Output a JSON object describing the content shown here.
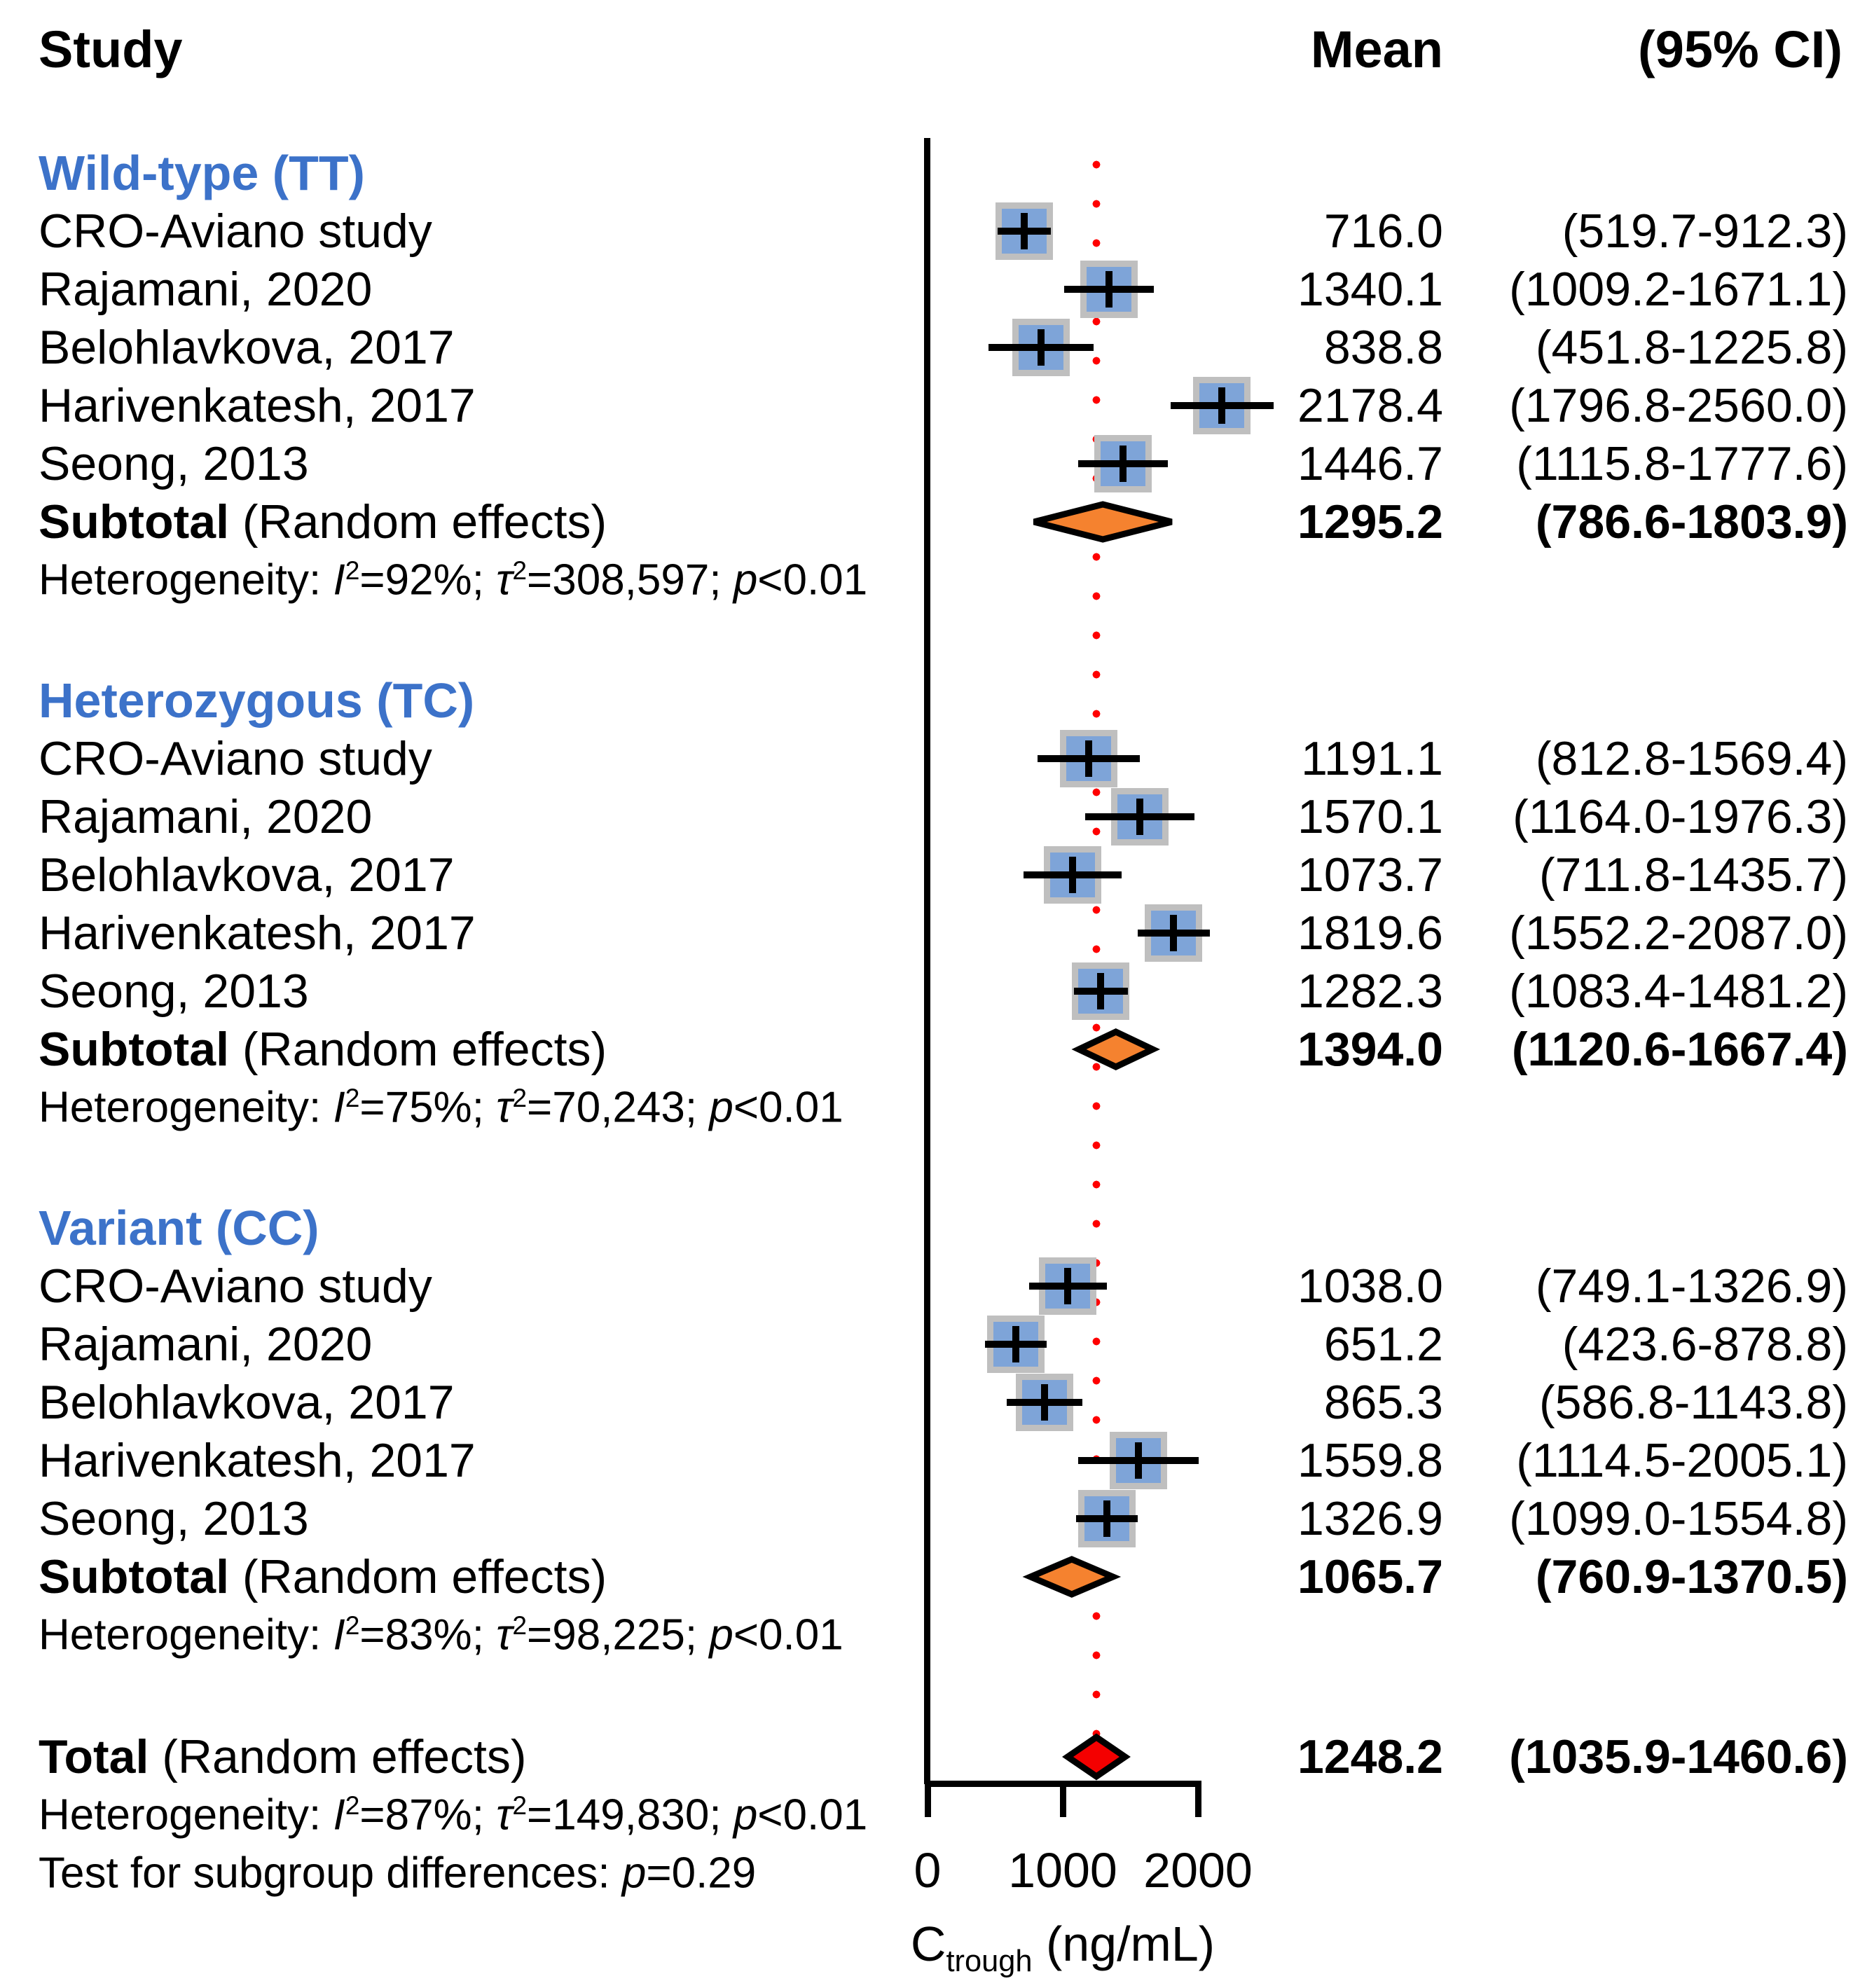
{
  "header": {
    "study": "Study",
    "mean": "Mean",
    "ci": "(95% CI)"
  },
  "colors": {
    "section_header_blue": "#3C72C9",
    "square_fill": "#7EA4D8",
    "square_border": "#BFBFBF",
    "subtotal_diamond_orange": "#F5822F",
    "total_diamond_red": "#F40000",
    "reference_line_red": "#FF0000",
    "ci_line_black": "#000000"
  },
  "axis": {
    "xmin": 0,
    "xmax": 2000,
    "ticks": [
      {
        "value": 0,
        "label": "0"
      },
      {
        "value": 1000,
        "label": "1000"
      },
      {
        "value": 2000,
        "label": "2000"
      }
    ],
    "title_main": "C",
    "title_sub": "trough",
    "title_rest": " (ng/mL)"
  },
  "chart_data": {
    "type": "forest",
    "xlabel": "Ctrough (ng/mL)",
    "xlim": [
      0,
      2000
    ],
    "reference_line": 1248.2,
    "groups": [
      {
        "label": "Wild-type (TT)",
        "studies": [
          {
            "name": "CRO-Aviano study",
            "mean": 716.0,
            "ci_low": 519.7,
            "ci_high": 912.3,
            "mean_text": "716.0",
            "ci_text": "(519.7-912.3)"
          },
          {
            "name": "Rajamani, 2020",
            "mean": 1340.1,
            "ci_low": 1009.2,
            "ci_high": 1671.1,
            "mean_text": "1340.1",
            "ci_text": "(1009.2-1671.1)"
          },
          {
            "name": "Belohlavkova, 2017",
            "mean": 838.8,
            "ci_low": 451.8,
            "ci_high": 1225.8,
            "mean_text": "838.8",
            "ci_text": "(451.8-1225.8)"
          },
          {
            "name": "Harivenkatesh, 2017",
            "mean": 2178.4,
            "ci_low": 1796.8,
            "ci_high": 2560.0,
            "mean_text": "2178.4",
            "ci_text": "(1796.8-2560.0)"
          },
          {
            "name": "Seong, 2013",
            "mean": 1446.7,
            "ci_low": 1115.8,
            "ci_high": 1777.6,
            "mean_text": "1446.7",
            "ci_text": "(1115.8-1777.6)"
          }
        ],
        "subtotal": {
          "label_bold": "Subtotal",
          "label_rest": " (Random effects)",
          "mean": 1295.2,
          "ci_low": 786.6,
          "ci_high": 1803.9,
          "mean_text": "1295.2",
          "ci_text": "(786.6-1803.9)"
        },
        "heterogeneity": {
          "prefix": "Heterogeneity: ",
          "i_sym": "I",
          "sup1": "2",
          "i_val": "=92%; ",
          "tau_sym": "τ",
          "sup2": "2",
          "tau_val": "=308,597; ",
          "p_sym": "p",
          "p_val": "<0.01"
        }
      },
      {
        "label": "Heterozygous (TC)",
        "studies": [
          {
            "name": "CRO-Aviano study",
            "mean": 1191.1,
            "ci_low": 812.8,
            "ci_high": 1569.4,
            "mean_text": "1191.1",
            "ci_text": "(812.8-1569.4)"
          },
          {
            "name": "Rajamani, 2020",
            "mean": 1570.1,
            "ci_low": 1164.0,
            "ci_high": 1976.3,
            "mean_text": "1570.1",
            "ci_text": "(1164.0-1976.3)"
          },
          {
            "name": "Belohlavkova, 2017",
            "mean": 1073.7,
            "ci_low": 711.8,
            "ci_high": 1435.7,
            "mean_text": "1073.7",
            "ci_text": "(711.8-1435.7)"
          },
          {
            "name": "Harivenkatesh, 2017",
            "mean": 1819.6,
            "ci_low": 1552.2,
            "ci_high": 2087.0,
            "mean_text": "1819.6",
            "ci_text": "(1552.2-2087.0)"
          },
          {
            "name": "Seong, 2013",
            "mean": 1282.3,
            "ci_low": 1083.4,
            "ci_high": 1481.2,
            "mean_text": "1282.3",
            "ci_text": "(1083.4-1481.2)"
          }
        ],
        "subtotal": {
          "label_bold": "Subtotal",
          "label_rest": " (Random effects)",
          "mean": 1394.0,
          "ci_low": 1120.6,
          "ci_high": 1667.4,
          "mean_text": "1394.0",
          "ci_text": "(1120.6-1667.4)"
        },
        "heterogeneity": {
          "prefix": "Heterogeneity: ",
          "i_sym": "I",
          "sup1": "2",
          "i_val": "=75%; ",
          "tau_sym": "τ",
          "sup2": "2",
          "tau_val": "=70,243; ",
          "p_sym": "p",
          "p_val": "<0.01"
        }
      },
      {
        "label": "Variant (CC)",
        "studies": [
          {
            "name": "CRO-Aviano study",
            "mean": 1038.0,
            "ci_low": 749.1,
            "ci_high": 1326.9,
            "mean_text": "1038.0",
            "ci_text": "(749.1-1326.9)"
          },
          {
            "name": "Rajamani, 2020",
            "mean": 651.2,
            "ci_low": 423.6,
            "ci_high": 878.8,
            "mean_text": "651.2",
            "ci_text": "(423.6-878.8)"
          },
          {
            "name": "Belohlavkova, 2017",
            "mean": 865.3,
            "ci_low": 586.8,
            "ci_high": 1143.8,
            "mean_text": "865.3",
            "ci_text": "(586.8-1143.8)"
          },
          {
            "name": "Harivenkatesh, 2017",
            "mean": 1559.8,
            "ci_low": 1114.5,
            "ci_high": 2005.1,
            "mean_text": "1559.8",
            "ci_text": "(1114.5-2005.1)"
          },
          {
            "name": "Seong, 2013",
            "mean": 1326.9,
            "ci_low": 1099.0,
            "ci_high": 1554.8,
            "mean_text": "1326.9",
            "ci_text": "(1099.0-1554.8)"
          }
        ],
        "subtotal": {
          "label_bold": "Subtotal",
          "label_rest": " (Random effects)",
          "mean": 1065.7,
          "ci_low": 760.9,
          "ci_high": 1370.5,
          "mean_text": "1065.7",
          "ci_text": "(760.9-1370.5)"
        },
        "heterogeneity": {
          "prefix": "Heterogeneity: ",
          "i_sym": "I",
          "sup1": "2",
          "i_val": "=83%; ",
          "tau_sym": "τ",
          "sup2": "2",
          "tau_val": "=98,225; ",
          "p_sym": "p",
          "p_val": "<0.01"
        }
      }
    ],
    "total": {
      "label_bold": "Total",
      "label_rest": " (Random effects)",
      "mean": 1248.2,
      "ci_low": 1035.9,
      "ci_high": 1460.6,
      "mean_text": "1248.2",
      "ci_text": "(1035.9-1460.6)",
      "heterogeneity": {
        "prefix": "Heterogeneity: ",
        "i_sym": "I",
        "sup1": "2",
        "i_val": "=87%; ",
        "tau_sym": "τ",
        "sup2": "2",
        "tau_val": "=149,830; ",
        "p_sym": "p",
        "p_val": "<0.01"
      },
      "subgroup_test": {
        "prefix": "Test for subgroup differences: ",
        "p_sym": "p",
        "p_val": "=0.29"
      }
    }
  }
}
